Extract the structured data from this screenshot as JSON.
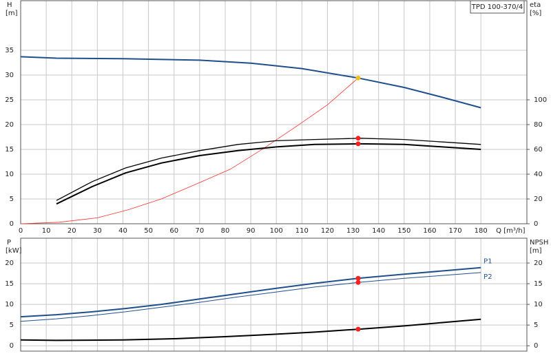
{
  "chart_data": [
    {
      "type": "line",
      "title": "TPD 100-370/4",
      "ylabel": "H",
      "yunit": "[m]",
      "y2label": "eta",
      "y2unit": "[%]",
      "xlabel": "Q [m³/h]",
      "xlim": [
        0,
        198
      ],
      "xticks": [
        0,
        10,
        20,
        30,
        40,
        50,
        60,
        70,
        80,
        90,
        100,
        110,
        120,
        130,
        140,
        150,
        160,
        170,
        180
      ],
      "ylim": [
        0,
        45
      ],
      "yticks": [
        0,
        5,
        10,
        15,
        20,
        25,
        30,
        35
      ],
      "y2lim": [
        0,
        180
      ],
      "y2ticks": [
        0,
        20,
        40,
        60,
        80,
        100
      ],
      "grid": true,
      "series": [
        {
          "color": "#1f4e8c",
          "width": 2,
          "x": [
            0,
            14,
            40,
            70,
            90,
            110,
            132,
            150,
            165,
            180
          ],
          "values": [
            33.7,
            33.4,
            33.3,
            33,
            32.4,
            31.3,
            29.4,
            27.5,
            25.5,
            23.4
          ]
        },
        {
          "color": "#ff3030",
          "width": 0.8,
          "x": [
            0,
            15,
            30,
            42,
            55,
            70,
            82,
            95,
            108,
            120,
            132
          ],
          "values": [
            0,
            0.3,
            1.2,
            2.8,
            5,
            8.3,
            11,
            15.2,
            19.7,
            24,
            29.4
          ]
        },
        {
          "color": "#000000",
          "width": 1.3,
          "axis": "y2",
          "x": [
            14,
            28,
            41,
            55,
            70,
            85,
            100,
            115,
            133,
            150,
            165,
            180
          ],
          "values": [
            18.8,
            34,
            45,
            53,
            59,
            64,
            67,
            68,
            69,
            68,
            66,
            64
          ]
        },
        {
          "color": "#000000",
          "width": 2,
          "axis": "y2",
          "x": [
            14,
            28,
            41,
            55,
            70,
            85,
            100,
            115,
            133,
            150,
            165,
            180
          ],
          "values": [
            16,
            30,
            41,
            49,
            55,
            59,
            62,
            64,
            64.5,
            64,
            62,
            60
          ]
        },
        {
          "color": "#f0c020",
          "marker": true,
          "x": [
            132
          ],
          "values": [
            29.4
          ]
        },
        {
          "color": "#ff2020",
          "marker": true,
          "axis": "y2",
          "x": [
            132,
            132
          ],
          "values": [
            69,
            64.5
          ]
        }
      ]
    },
    {
      "type": "line",
      "ylabel": "P",
      "yunit": "[kW]",
      "y2label": "NPSH",
      "y2unit": "[m]",
      "xlim": [
        0,
        198
      ],
      "xticks": [
        0,
        10,
        20,
        30,
        40,
        50,
        60,
        70,
        80,
        90,
        100,
        110,
        120,
        130,
        140,
        150,
        160,
        170,
        180
      ],
      "ylim": [
        -1.3,
        26
      ],
      "yticks": [
        0,
        5,
        10,
        15,
        20
      ],
      "y2lim": [
        -1.3,
        26
      ],
      "y2ticks": [
        0,
        5,
        10,
        15,
        20
      ],
      "grid": true,
      "series": [
        {
          "name": "P1",
          "color": "#1f4e8c",
          "width": 2,
          "x": [
            0,
            14,
            28,
            41,
            55,
            70,
            85,
            100,
            115,
            132,
            150,
            165,
            180
          ],
          "values": [
            7,
            7.5,
            8.2,
            9,
            10,
            11.3,
            12.6,
            13.9,
            15.1,
            16.3,
            17.3,
            18.1,
            18.9
          ]
        },
        {
          "name": "P2",
          "color": "#1f4e8c",
          "width": 1,
          "x": [
            0,
            14,
            28,
            41,
            55,
            70,
            85,
            100,
            115,
            132,
            150,
            165,
            180
          ],
          "values": [
            5.9,
            6.5,
            7.3,
            8.2,
            9.3,
            10.5,
            11.8,
            13,
            14.2,
            15.3,
            16.3,
            17,
            17.7
          ]
        },
        {
          "color": "#000000",
          "width": 2,
          "axis": "y2",
          "x": [
            0,
            14,
            40,
            60,
            80,
            100,
            115,
            132,
            150,
            165,
            180
          ],
          "values": [
            1.4,
            1.3,
            1.4,
            1.7,
            2.2,
            2.8,
            3.3,
            4,
            4.8,
            5.6,
            6.4
          ]
        },
        {
          "color": "#ff2020",
          "marker": true,
          "x": [
            132,
            132
          ],
          "values": [
            16.3,
            15.3
          ]
        },
        {
          "color": "#ff2020",
          "marker": true,
          "axis": "y2",
          "x": [
            132
          ],
          "values": [
            4
          ]
        }
      ]
    }
  ]
}
